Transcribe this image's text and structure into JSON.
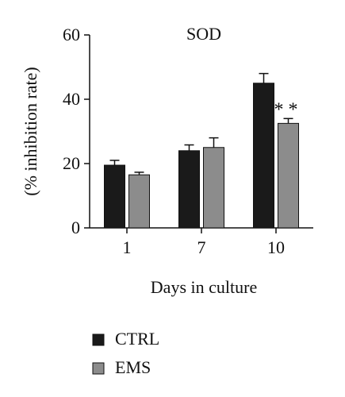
{
  "chart_data": {
    "type": "bar",
    "title": "SOD",
    "xlabel": "Days in culture",
    "ylabel": "(% inhibition rate)",
    "categories": [
      "1",
      "7",
      "10"
    ],
    "ylim": [
      0,
      60
    ],
    "yticks": [
      "0",
      "20",
      "40",
      "60"
    ],
    "grid": false,
    "legend_position": "bottom-left",
    "series": [
      {
        "name": "CTRL",
        "color": "#1a1a1a",
        "values": [
          19.5,
          24,
          45
        ],
        "errors": [
          1.5,
          1.8,
          3
        ]
      },
      {
        "name": "EMS",
        "color": "#8c8c8c",
        "values": [
          16.5,
          25,
          32.5
        ],
        "errors": [
          0.8,
          3,
          1.5
        ]
      }
    ],
    "annotations": [
      {
        "category": "10",
        "series": "EMS",
        "text": "**"
      }
    ]
  }
}
